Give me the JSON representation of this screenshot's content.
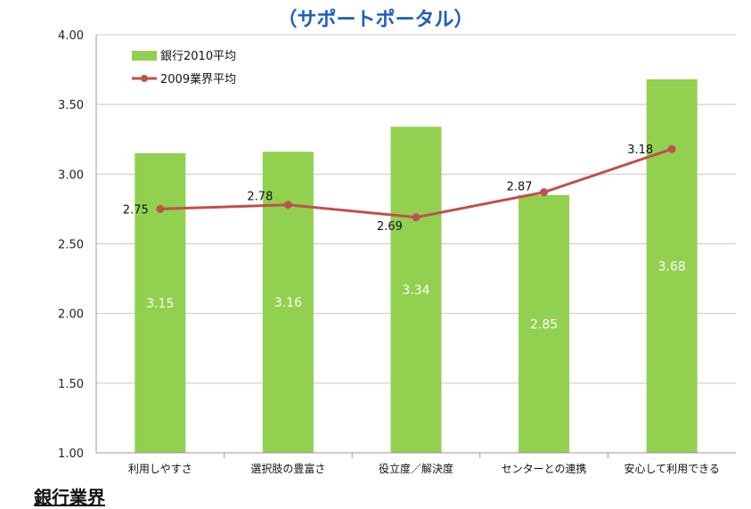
{
  "page": {
    "title": "（サポートポータル）",
    "footer": "銀行業界"
  },
  "colors": {
    "bar": "#92d050",
    "line": "#c0504d",
    "title": "#1f5fbf",
    "grid": "#c8c8c8"
  },
  "chart_data": {
    "type": "bar",
    "title": "（サポートポータル）",
    "xlabel": "",
    "ylabel": "",
    "ylim": [
      1.0,
      4.0
    ],
    "yticks": [
      "1.00",
      "1.50",
      "2.00",
      "2.50",
      "3.00",
      "3.50",
      "4.00"
    ],
    "grid": true,
    "legend_position": "top-left",
    "categories": [
      "利用しやすさ",
      "選択肢の豊富さ",
      "役立度／解決度",
      "センターとの連携",
      "安心して利用できる"
    ],
    "series": [
      {
        "name": "銀行2010平均",
        "kind": "bar",
        "values": [
          3.15,
          3.16,
          3.34,
          2.85,
          3.68
        ],
        "labels": [
          "3.15",
          "3.16",
          "3.34",
          "2.85",
          "3.68"
        ]
      },
      {
        "name": "2009業界平均",
        "kind": "line",
        "values": [
          2.75,
          2.78,
          2.69,
          2.87,
          3.18
        ],
        "labels": [
          "2.75",
          "2.78",
          "2.69",
          "2.87",
          "3.18"
        ]
      }
    ]
  }
}
